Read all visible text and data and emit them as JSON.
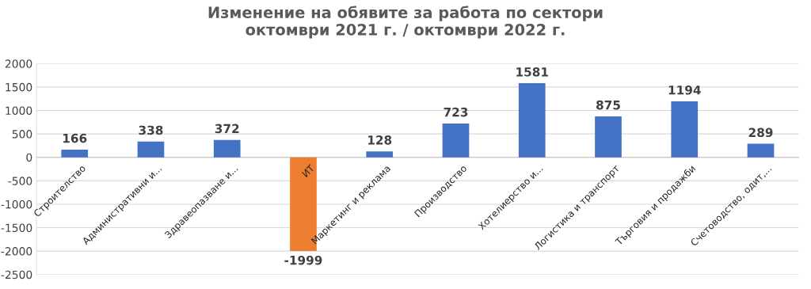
{
  "chart_data": {
    "type": "bar",
    "title": "Изменение на обявите за работа по сектори\nоктомври 2021 г. / октомври 2022 г.",
    "categories": [
      "Строителство",
      "Административни и...",
      "Здравеопазване и...",
      "ИТ",
      "Маркетинг и реклама",
      "Производство",
      "Хотелиерство и...",
      "Логистика и транспорт",
      "Търговия и продажби",
      "Счетоводство, одит,..."
    ],
    "values": [
      166,
      338,
      372,
      -1999,
      128,
      723,
      1581,
      875,
      1194,
      289
    ],
    "colors": [
      "#4472c4",
      "#4472c4",
      "#4472c4",
      "#ed7d31",
      "#4472c4",
      "#4472c4",
      "#4472c4",
      "#4472c4",
      "#4472c4",
      "#4472c4"
    ],
    "ylim": [
      -2500,
      2000
    ],
    "yticks": [
      -2500,
      -2000,
      -1500,
      -1000,
      -500,
      0,
      500,
      1000,
      1500,
      2000
    ],
    "grid": "y",
    "data_labels": true,
    "legend": false
  }
}
